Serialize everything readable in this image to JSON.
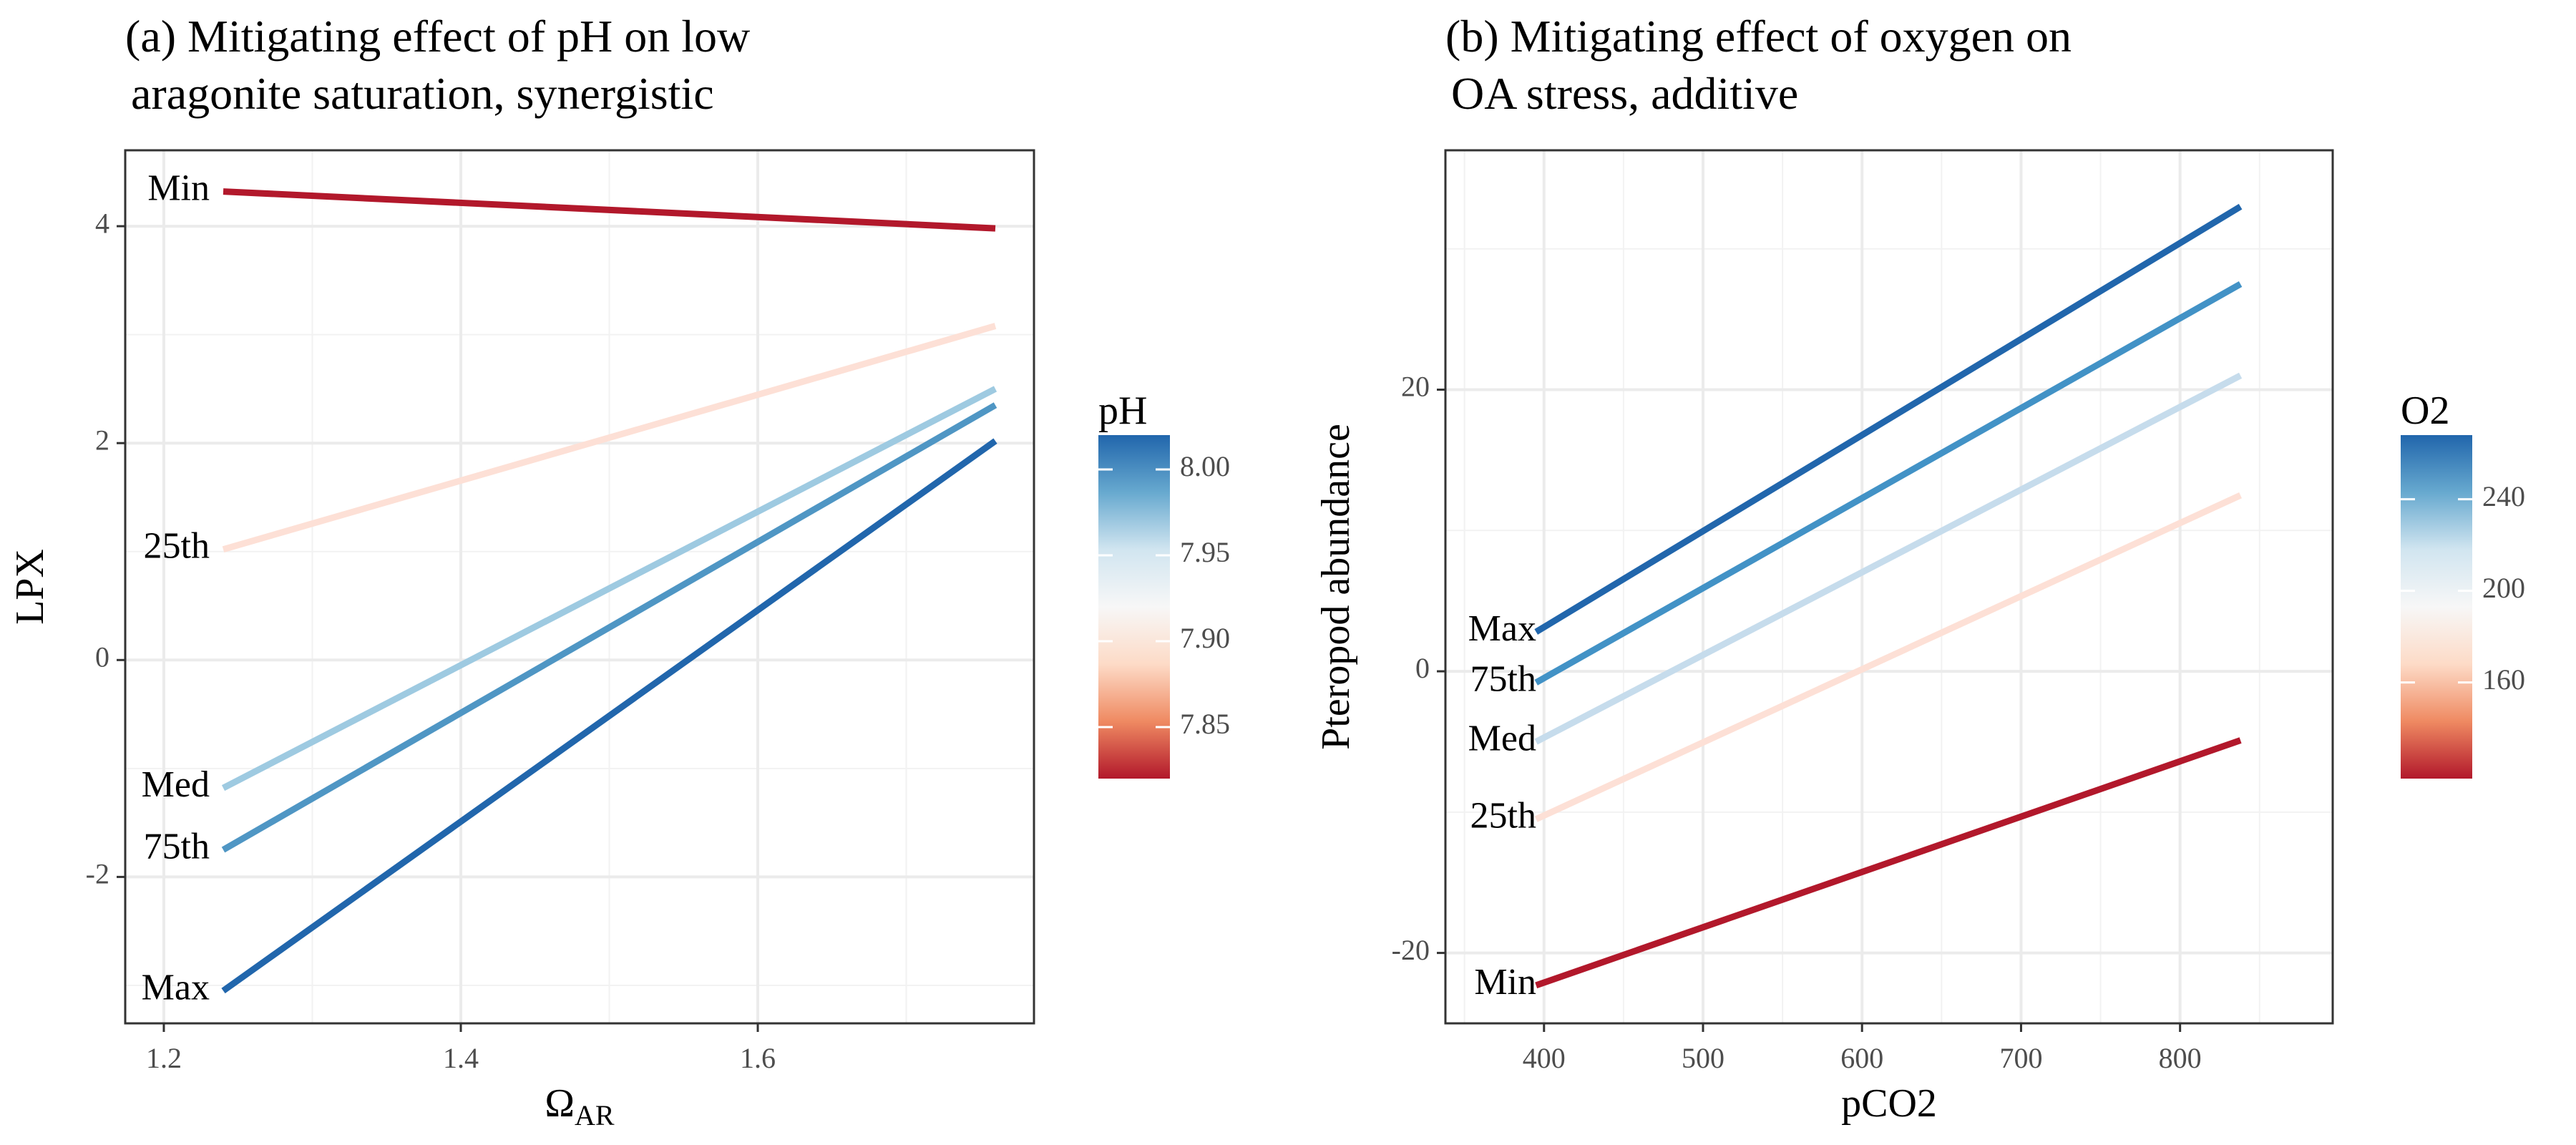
{
  "chart_data": [
    {
      "type": "line",
      "title": "(a) Mitigating effect of pH on low",
      "subtitle": "aragonite saturation, synergistic",
      "xlabel": "Ω",
      "xlabel_sub": "AR",
      "ylabel": "LPX",
      "xlim": [
        1.174,
        1.786
      ],
      "ylim": [
        -3.35,
        4.7
      ],
      "x_ticks": [
        1.2,
        1.4,
        1.6
      ],
      "x_tick_labels": [
        "1.2",
        "1.4",
        "1.6"
      ],
      "y_ticks": [
        -2,
        0,
        2,
        4
      ],
      "y_tick_labels": [
        "-2",
        "0",
        "2",
        "4"
      ],
      "grid": true,
      "legend": {
        "title": "pH",
        "position": "right",
        "range": [
          7.82,
          8.02
        ],
        "ticks": [
          7.85,
          7.9,
          7.95,
          8.0
        ],
        "tick_labels": [
          "7.85",
          "7.90",
          "7.95",
          "8.00"
        ],
        "colors": [
          "#b2182b",
          "#ef8a62",
          "#fddbc7",
          "#f7f7f7",
          "#d1e5f0",
          "#67a9cf",
          "#2166ac"
        ]
      },
      "series": [
        {
          "label": "Min",
          "color": "#b2182b",
          "x": [
            1.24,
            1.76
          ],
          "y": [
            4.32,
            3.98
          ]
        },
        {
          "label": "25th",
          "color": "#fde0d6",
          "x": [
            1.24,
            1.76
          ],
          "y": [
            1.02,
            3.08
          ]
        },
        {
          "label": "Med",
          "color": "#9ecae1",
          "x": [
            1.24,
            1.76
          ],
          "y": [
            -1.18,
            2.5
          ]
        },
        {
          "label": "75th",
          "color": "#4f96c4",
          "x": [
            1.24,
            1.76
          ],
          "y": [
            -1.75,
            2.35
          ]
        },
        {
          "label": "Max",
          "color": "#2166ac",
          "x": [
            1.24,
            1.76
          ],
          "y": [
            -3.05,
            2.02
          ]
        }
      ]
    },
    {
      "type": "line",
      "title": "(b) Mitigating effect of oxygen on",
      "subtitle": "OA stress, additive",
      "xlabel": "pCO2",
      "ylabel": "Pteropod abundance",
      "xlim": [
        338,
        896
      ],
      "ylim": [
        -25,
        37
      ],
      "x_ticks": [
        400,
        500,
        600,
        700,
        800
      ],
      "x_tick_labels": [
        "400",
        "500",
        "600",
        "700",
        "800"
      ],
      "y_ticks": [
        -20,
        0,
        20
      ],
      "y_tick_labels": [
        "-20",
        "0",
        "20"
      ],
      "grid": true,
      "legend": {
        "title": "O2",
        "position": "right",
        "range": [
          118,
          268
        ],
        "ticks": [
          160,
          200,
          240
        ],
        "tick_labels": [
          "160",
          "200",
          "240"
        ],
        "colors": [
          "#b2182b",
          "#ef8a62",
          "#fddbc7",
          "#f7f7f7",
          "#d1e5f0",
          "#67a9cf",
          "#2166ac"
        ]
      },
      "series": [
        {
          "label": "Max",
          "color": "#2166ac",
          "x": [
            395,
            838
          ],
          "y": [
            2.8,
            33.0
          ]
        },
        {
          "label": "75th",
          "color": "#4292c6",
          "x": [
            395,
            838
          ],
          "y": [
            -0.8,
            27.5
          ]
        },
        {
          "label": "Med",
          "color": "#c6dcec",
          "x": [
            395,
            838
          ],
          "y": [
            -5.0,
            21.0
          ]
        },
        {
          "label": "25th",
          "color": "#fde0d6",
          "x": [
            395,
            838
          ],
          "y": [
            -10.5,
            12.5
          ]
        },
        {
          "label": "Min",
          "color": "#b2182b",
          "x": [
            395,
            838
          ],
          "y": [
            -22.3,
            -4.9
          ]
        }
      ]
    }
  ]
}
